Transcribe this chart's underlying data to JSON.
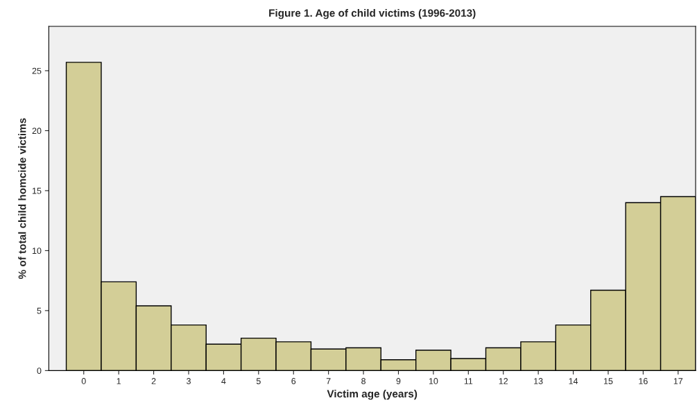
{
  "chart_data": {
    "type": "bar",
    "title": "Figure 1. Age of child victims (1996-2013)",
    "xlabel": "Victim age (years)",
    "ylabel": "% of total child homcide victims",
    "categories": [
      "0",
      "1",
      "2",
      "3",
      "4",
      "5",
      "6",
      "7",
      "8",
      "9",
      "10",
      "11",
      "12",
      "13",
      "14",
      "15",
      "16",
      "17"
    ],
    "values": [
      25.7,
      7.4,
      5.4,
      3.8,
      2.2,
      2.7,
      2.4,
      1.8,
      1.9,
      0.9,
      1.7,
      1.0,
      1.9,
      2.4,
      3.8,
      6.7,
      14.0,
      14.5
    ],
    "color": "#d3ce97",
    "ylim": [
      0,
      28.7
    ],
    "yticks": [
      0,
      5,
      10,
      15,
      20,
      25
    ],
    "grid": false,
    "legend": false
  }
}
